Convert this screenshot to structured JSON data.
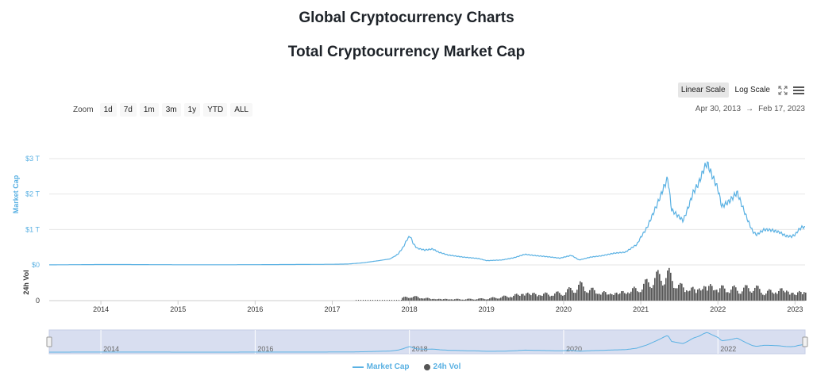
{
  "page": {
    "title": "Global Cryptocurrency Charts"
  },
  "controls": {
    "scale_buttons": [
      {
        "label": "Linear Scale",
        "active": true
      },
      {
        "label": "Log Scale",
        "active": false
      }
    ],
    "fullscreen_icon": "fullscreen-icon",
    "menu_icon": "hamburger-menu-icon",
    "zoom_label": "Zoom",
    "zoom_buttons": [
      "1d",
      "7d",
      "1m",
      "3m",
      "1y",
      "YTD",
      "ALL"
    ],
    "date_from": "Apr 30, 2013",
    "date_arrow": "→",
    "date_to": "Feb 17, 2023"
  },
  "colors": {
    "market_cap": "#5ab1e3",
    "volume": "#555555",
    "navigator_fill": "#d8def0",
    "grid": "#e6e6e6"
  },
  "chart_data": {
    "type": "line",
    "title": "Total Cryptocurrency Market Cap",
    "x_range": [
      2013.33,
      2023.13
    ],
    "x_ticks": [
      2014,
      2015,
      2016,
      2017,
      2018,
      2019,
      2020,
      2021,
      2022,
      2023
    ],
    "x_tick_labels": [
      "2014",
      "2015",
      "2016",
      "2017",
      "2018",
      "2019",
      "2020",
      "2021",
      "2022",
      "2023"
    ],
    "market_cap_axis": {
      "label": "Market Cap",
      "unit": "T",
      "range": [
        0,
        3
      ],
      "ticks": [
        0,
        1,
        2,
        3
      ],
      "tick_labels": [
        "$0",
        "$1 T",
        "$2 T",
        "$3 T"
      ]
    },
    "volume_axis": {
      "label": "24h Vol",
      "ticks": [
        0
      ],
      "tick_labels": [
        "0"
      ]
    },
    "navigator_ticks": [
      2014,
      2016,
      2018,
      2020,
      2022
    ],
    "navigator_tick_labels": [
      "2014",
      "2016",
      "2018",
      "2020",
      "2022"
    ],
    "series": [
      {
        "name": "Market Cap",
        "unit": "trillion USD",
        "points": [
          [
            2013.33,
            0.002
          ],
          [
            2013.9,
            0.01
          ],
          [
            2014.2,
            0.012
          ],
          [
            2014.6,
            0.008
          ],
          [
            2015.0,
            0.005
          ],
          [
            2015.5,
            0.004
          ],
          [
            2016.0,
            0.007
          ],
          [
            2016.5,
            0.012
          ],
          [
            2017.0,
            0.018
          ],
          [
            2017.2,
            0.025
          ],
          [
            2017.4,
            0.06
          ],
          [
            2017.5,
            0.09
          ],
          [
            2017.6,
            0.12
          ],
          [
            2017.75,
            0.17
          ],
          [
            2017.85,
            0.3
          ],
          [
            2017.92,
            0.5
          ],
          [
            2017.97,
            0.72
          ],
          [
            2018.01,
            0.82
          ],
          [
            2018.05,
            0.6
          ],
          [
            2018.1,
            0.47
          ],
          [
            2018.2,
            0.42
          ],
          [
            2018.3,
            0.45
          ],
          [
            2018.38,
            0.36
          ],
          [
            2018.5,
            0.28
          ],
          [
            2018.7,
            0.22
          ],
          [
            2018.9,
            0.18
          ],
          [
            2019.0,
            0.12
          ],
          [
            2019.2,
            0.14
          ],
          [
            2019.35,
            0.2
          ],
          [
            2019.5,
            0.3
          ],
          [
            2019.6,
            0.27
          ],
          [
            2019.8,
            0.23
          ],
          [
            2019.95,
            0.19
          ],
          [
            2020.1,
            0.27
          ],
          [
            2020.2,
            0.14
          ],
          [
            2020.35,
            0.22
          ],
          [
            2020.5,
            0.26
          ],
          [
            2020.65,
            0.33
          ],
          [
            2020.8,
            0.36
          ],
          [
            2020.95,
            0.58
          ],
          [
            2021.0,
            0.78
          ],
          [
            2021.08,
            1.05
          ],
          [
            2021.15,
            1.4
          ],
          [
            2021.22,
            1.75
          ],
          [
            2021.3,
            2.2
          ],
          [
            2021.35,
            2.45
          ],
          [
            2021.4,
            1.55
          ],
          [
            2021.45,
            1.45
          ],
          [
            2021.55,
            1.25
          ],
          [
            2021.62,
            1.65
          ],
          [
            2021.68,
            2.05
          ],
          [
            2021.75,
            2.3
          ],
          [
            2021.82,
            2.72
          ],
          [
            2021.86,
            2.88
          ],
          [
            2021.92,
            2.55
          ],
          [
            2022.0,
            2.15
          ],
          [
            2022.05,
            1.65
          ],
          [
            2022.15,
            1.8
          ],
          [
            2022.25,
            2.05
          ],
          [
            2022.3,
            1.75
          ],
          [
            2022.38,
            1.3
          ],
          [
            2022.45,
            0.95
          ],
          [
            2022.5,
            0.85
          ],
          [
            2022.6,
            1.0
          ],
          [
            2022.7,
            0.98
          ],
          [
            2022.8,
            0.92
          ],
          [
            2022.88,
            0.82
          ],
          [
            2022.95,
            0.8
          ],
          [
            2023.0,
            0.85
          ],
          [
            2023.05,
            1.0
          ],
          [
            2023.1,
            1.08
          ],
          [
            2023.13,
            1.05
          ]
        ]
      },
      {
        "name": "24h Vol",
        "unit": "relative",
        "points": [
          [
            2017.9,
            0.1
          ],
          [
            2018.0,
            0.18
          ],
          [
            2018.3,
            0.08
          ],
          [
            2018.7,
            0.06
          ],
          [
            2019.0,
            0.08
          ],
          [
            2019.3,
            0.2
          ],
          [
            2019.5,
            0.35
          ],
          [
            2019.7,
            0.28
          ],
          [
            2019.95,
            0.3
          ],
          [
            2020.1,
            0.45
          ],
          [
            2020.2,
            0.62
          ],
          [
            2020.4,
            0.4
          ],
          [
            2020.6,
            0.32
          ],
          [
            2020.8,
            0.4
          ],
          [
            2021.0,
            0.55
          ],
          [
            2021.1,
            0.8
          ],
          [
            2021.25,
            1.0
          ],
          [
            2021.35,
            1.05
          ],
          [
            2021.5,
            0.6
          ],
          [
            2021.7,
            0.5
          ],
          [
            2021.85,
            0.68
          ],
          [
            2022.0,
            0.55
          ],
          [
            2022.3,
            0.45
          ],
          [
            2022.45,
            0.55
          ],
          [
            2022.6,
            0.35
          ],
          [
            2022.85,
            0.5
          ],
          [
            2023.0,
            0.3
          ],
          [
            2023.1,
            0.45
          ]
        ]
      }
    ],
    "legend": {
      "position": "bottom-center",
      "entries": [
        "Market Cap",
        "24h Vol"
      ]
    }
  }
}
